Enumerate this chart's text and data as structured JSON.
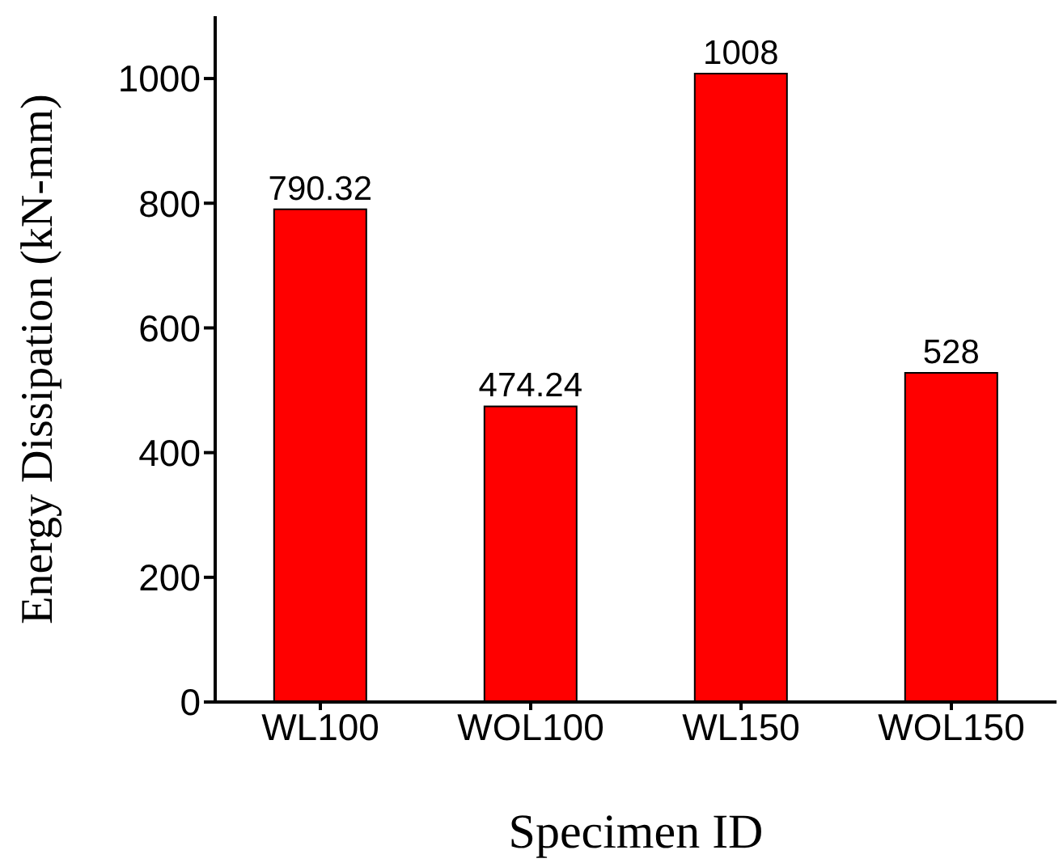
{
  "chart_data": {
    "type": "bar",
    "xlabel": "Specimen ID",
    "ylabel": "Energy Dissipation (kN-mm)",
    "categories": [
      "WL100",
      "WOL100",
      "WL150",
      "WOL150"
    ],
    "values": [
      790.32,
      474.24,
      1008,
      528
    ],
    "color": "#ff0000",
    "ylim": [
      0,
      1100
    ],
    "yticks": [
      0,
      200,
      400,
      600,
      800,
      1000
    ],
    "data_labels": true,
    "grid": false,
    "legend": false
  }
}
